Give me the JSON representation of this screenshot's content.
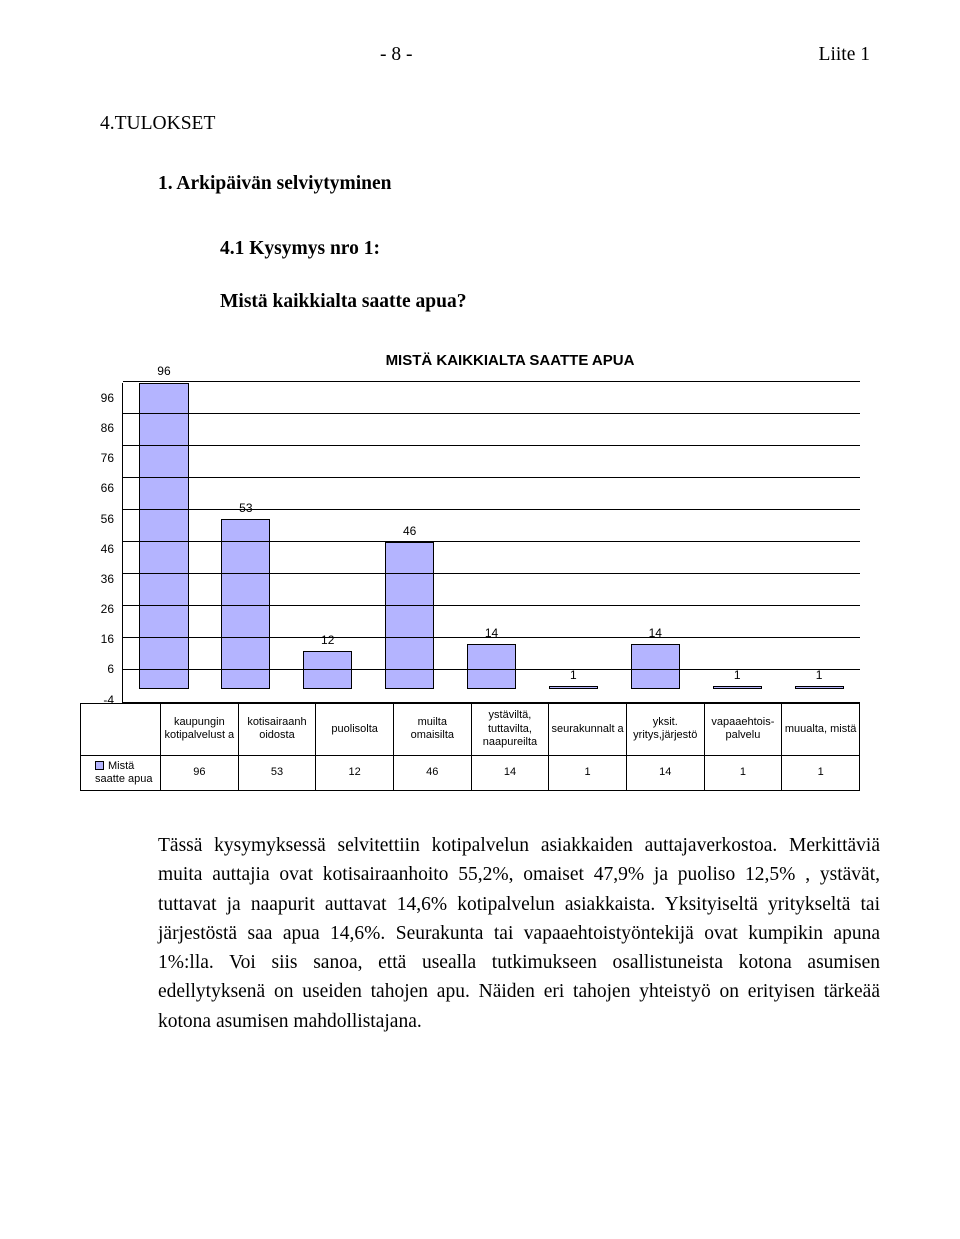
{
  "header": {
    "page_marker": "- 8 -",
    "attachment": "Liite 1"
  },
  "headings": {
    "section": "4.TULOKSET",
    "sub1": "1. Arkipäivän selviytyminen",
    "sub2": "4.1 Kysymys nro 1:",
    "sub3": "Mistä kaikkialta saatte apua?"
  },
  "chart": {
    "type": "bar",
    "title": "MISTÄ KAIKKIALTA SAATTE APUA",
    "title_fontsize": 15,
    "bar_fill": "#b4b4ff",
    "bar_border": "#000000",
    "grid_color": "#000000",
    "background_color": "#ffffff",
    "y_ticks": [
      96,
      86,
      76,
      66,
      56,
      46,
      36,
      26,
      16,
      6,
      -4
    ],
    "ymin": -4,
    "ymax": 96,
    "bar_width": 0.6,
    "categories": [
      {
        "label": "kaupungin kotipalvelust a",
        "value": 96
      },
      {
        "label": "kotisairaanh oidosta",
        "value": 53
      },
      {
        "label": "puolisolta",
        "value": 12
      },
      {
        "label": "muilta omaisilta",
        "value": 46
      },
      {
        "label": "ystäviltä, tuttavilta, naapureilta",
        "value": 14
      },
      {
        "label": "seurakunnalt a",
        "value": 1
      },
      {
        "label": "yksit. yritys,järjestö",
        "value": 14
      },
      {
        "label": "vapaaehtois- palvelu",
        "value": 1
      },
      {
        "label": "muualta, mistä",
        "value": 1
      }
    ],
    "series_label": "Mistä saatte apua"
  },
  "paragraph": "Tässä kysymyksessä selvitettiin kotipalvelun asiakkaiden auttajaverkostoa. Merkittäviä muita auttajia ovat kotisairaanhoito 55,2%, omaiset 47,9% ja puoliso 12,5% , ystävät, tuttavat ja naapurit auttavat 14,6% kotipalvelun asiakkaista. Yksityiseltä yritykseltä tai järjestöstä saa apua 14,6%. Seurakunta tai vapaaehtoistyöntekijä ovat kumpikin apuna 1%:lla. Voi siis sanoa, että usealla tutkimukseen osallistuneista kotona asumisen edellytyksenä on useiden tahojen apu. Näiden eri tahojen yhteistyö on erityisen tärkeää kotona asumisen mahdollistajana."
}
